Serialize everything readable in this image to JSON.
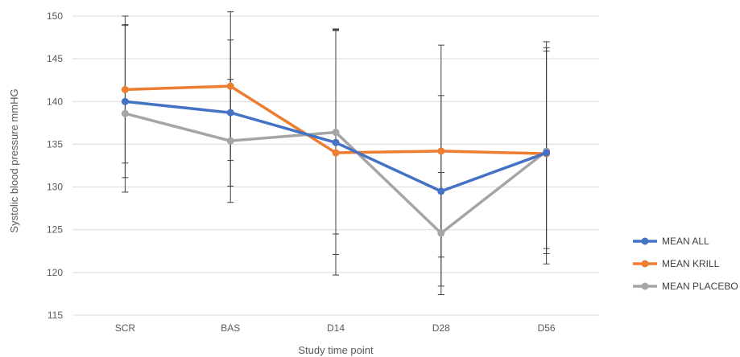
{
  "chart_data": {
    "type": "line",
    "title": "",
    "xlabel": "Study time point",
    "ylabel": "Systolic blood pressure  mmHG",
    "categories": [
      "SCR",
      "BAS",
      "D14",
      "D28",
      "D56"
    ],
    "ylim": [
      115,
      150
    ],
    "yticks": [
      115,
      120,
      125,
      130,
      135,
      140,
      145,
      150
    ],
    "grid": true,
    "legend_position": "right",
    "series": [
      {
        "name": "MEAN ALL",
        "color": "#4472C4",
        "values": [
          140.0,
          138.7,
          135.2,
          129.5,
          134.0
        ],
        "error_low": [
          131.1,
          130.1,
          122.1,
          121.8,
          122.2
        ],
        "error_high": [
          148.9,
          147.2,
          148.3,
          140.7,
          145.9
        ]
      },
      {
        "name": "MEAN KRILL",
        "color": "#ED7D31",
        "values": [
          141.4,
          141.8,
          134.0,
          134.2,
          133.9
        ],
        "error_low": [
          132.8,
          133.1,
          119.7,
          118.4,
          121.0
        ],
        "error_high": [
          150.0,
          150.5,
          148.5,
          146.6,
          147.0
        ]
      },
      {
        "name": "MEAN PLACEBO",
        "color": "#A5A5A5",
        "values": [
          138.6,
          135.4,
          136.4,
          124.6,
          134.2
        ],
        "error_low": [
          129.4,
          128.2,
          124.5,
          117.4,
          122.8
        ],
        "error_high": [
          149.0,
          142.6,
          148.4,
          131.7,
          146.3
        ]
      }
    ]
  }
}
